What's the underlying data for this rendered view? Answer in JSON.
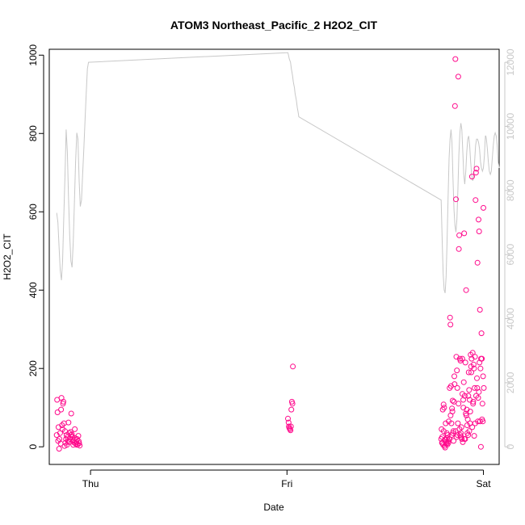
{
  "chart_data": {
    "type": "scatter",
    "title": "ATOM3 Northeast_Pacific_2 H2O2_CIT",
    "xlabel": "Date",
    "ylabel": "H2O2_CIT",
    "x_unit": "days from Thu 00:00",
    "x_ticks": [
      {
        "value": 0,
        "label": "Thu"
      },
      {
        "value": 1,
        "label": "Fri"
      },
      {
        "value": 2,
        "label": "Sat"
      }
    ],
    "xlim": [
      -0.21,
      2.08
    ],
    "ylim": [
      -45,
      1015
    ],
    "y_ticks": [
      0,
      200,
      400,
      600,
      800,
      1000
    ],
    "right_axis": {
      "label": "",
      "ylim": [
        -549,
        12406
      ],
      "ticks": [
        0,
        2000,
        4000,
        6000,
        8000,
        10000,
        12000
      ],
      "color": "#c8c8c8"
    },
    "series": [
      {
        "type": "points",
        "color": "#ff0a8c",
        "marker": "open-circle",
        "axis": "left",
        "x": [
          -0.172,
          -0.17,
          -0.168,
          -0.165,
          -0.163,
          -0.16,
          -0.158,
          -0.155,
          -0.152,
          -0.15,
          -0.148,
          -0.145,
          -0.142,
          -0.14,
          -0.138,
          -0.135,
          -0.132,
          -0.13,
          -0.128,
          -0.125,
          -0.122,
          -0.12,
          -0.118,
          -0.115,
          -0.112,
          -0.11,
          -0.108,
          -0.105,
          -0.102,
          -0.1,
          -0.098,
          -0.095,
          -0.092,
          -0.09,
          -0.088,
          -0.085,
          -0.082,
          -0.08,
          -0.078,
          -0.075,
          -0.072,
          -0.07,
          -0.068,
          -0.065,
          -0.062,
          -0.06,
          -0.058,
          -0.055,
          1.005,
          1.008,
          1.01,
          1.012,
          1.015,
          1.018,
          1.02,
          1.022,
          1.025,
          1.028,
          1.03,
          1.787,
          1.79,
          1.792,
          1.795,
          1.797,
          1.8,
          1.802,
          1.805,
          1.807,
          1.81,
          1.812,
          1.815,
          1.817,
          1.82,
          1.822,
          1.825,
          1.827,
          1.83,
          1.832,
          1.835,
          1.837,
          1.84,
          1.842,
          1.845,
          1.847,
          1.85,
          1.852,
          1.855,
          1.857,
          1.86,
          1.862,
          1.865,
          1.867,
          1.87,
          1.872,
          1.875,
          1.877,
          1.88,
          1.882,
          1.885,
          1.887,
          1.89,
          1.892,
          1.895,
          1.897,
          1.9,
          1.902,
          1.905,
          1.907,
          1.91,
          1.912,
          1.915,
          1.917,
          1.92,
          1.922,
          1.925,
          1.927,
          1.93,
          1.932,
          1.935,
          1.937,
          1.94,
          1.942,
          1.945,
          1.947,
          1.95,
          1.952,
          1.955,
          1.957,
          1.96,
          1.962,
          1.965,
          1.967,
          1.97,
          1.972,
          1.975,
          1.977,
          1.98,
          1.982,
          1.985,
          1.987,
          1.99,
          1.992,
          1.995,
          1.997,
          2.0,
          2.002,
          1.785,
          1.789,
          1.793,
          1.798,
          1.803,
          1.808,
          1.813,
          1.818,
          1.823,
          1.828,
          1.833,
          1.838,
          1.843,
          1.848,
          1.853,
          1.858,
          1.863,
          1.868,
          1.873,
          1.878,
          1.883,
          1.888,
          1.893,
          1.898,
          1.903,
          1.908,
          1.913,
          1.918,
          1.923,
          1.928,
          1.933,
          1.938,
          1.943,
          1.948,
          1.953,
          1.958,
          1.963,
          1.968,
          1.973,
          1.978,
          1.983,
          1.988,
          1.993,
          1.998
        ],
        "y": [
          30,
          120,
          88,
          15,
          50,
          -5,
          20,
          35,
          8,
          95,
          125,
          55,
          45,
          110,
          115,
          60,
          2,
          40,
          10,
          20,
          30,
          5,
          25,
          15,
          62,
          12,
          35,
          20,
          38,
          30,
          85,
          32,
          25,
          15,
          5,
          18,
          10,
          45,
          22,
          8,
          12,
          5,
          20,
          6,
          28,
          14,
          9,
          3,
          72,
          62,
          52,
          48,
          45,
          42,
          52,
          95,
          115,
          110,
          205,
          45,
          25,
          10,
          5,
          108,
          100,
          2,
          -2,
          18,
          12,
          8,
          22,
          6,
          15,
          10,
          20,
          20,
          330,
          312,
          155,
          60,
          98,
          90,
          35,
          40,
          115,
          180,
          870,
          990,
          632,
          230,
          195,
          150,
          60,
          945,
          505,
          540,
          225,
          30,
          35,
          25,
          20,
          225,
          12,
          120,
          165,
          545,
          130,
          20,
          85,
          400,
          95,
          55,
          70,
          30,
          190,
          145,
          120,
          60,
          235,
          205,
          225,
          690,
          240,
          110,
          210,
          200,
          150,
          230,
          630,
          700,
          710,
          175,
          470,
          65,
          580,
          140,
          215,
          350,
          200,
          0,
          290,
          225,
          110,
          65,
          610,
          150,
          20,
          10,
          95,
          40,
          18,
          60,
          35,
          30,
          65,
          150,
          80,
          30,
          118,
          15,
          160,
          40,
          25,
          30,
          110,
          45,
          220,
          50,
          135,
          100,
          20,
          215,
          80,
          35,
          130,
          40,
          90,
          190,
          50,
          115,
          28,
          60,
          130,
          150,
          125,
          550,
          65,
          225,
          70,
          180
        ]
      },
      {
        "type": "line",
        "color": "#c8c8c8",
        "axis": "right",
        "x": [
          -0.172,
          -0.166,
          -0.16,
          -0.154,
          -0.148,
          -0.142,
          -0.136,
          -0.13,
          -0.124,
          -0.118,
          -0.112,
          -0.106,
          -0.1,
          -0.094,
          -0.088,
          -0.082,
          -0.076,
          -0.07,
          -0.064,
          -0.058,
          -0.052,
          -0.046,
          -0.04,
          -0.034,
          -0.028,
          -0.022,
          -0.016,
          -0.01,
          1.0,
          1.002,
          1.005,
          1.012,
          1.018,
          1.022,
          1.025,
          1.028,
          1.03,
          1.032,
          1.035,
          1.038,
          1.04,
          1.042,
          1.045,
          1.048,
          1.05,
          1.052,
          1.055,
          1.058,
          1.06,
          1.785,
          1.79,
          1.795,
          1.8,
          1.805,
          1.81,
          1.815,
          1.82,
          1.825,
          1.83,
          1.835,
          1.84,
          1.845,
          1.85,
          1.855,
          1.86,
          1.865,
          1.87,
          1.875,
          1.88,
          1.885,
          1.89,
          1.895,
          1.9,
          1.905,
          1.91,
          1.915,
          1.92,
          1.925,
          1.93,
          1.935,
          1.94,
          1.945,
          1.95,
          1.955,
          1.96,
          1.965,
          1.97,
          1.975,
          1.98,
          1.985,
          1.99,
          1.995,
          2.0,
          2.005,
          2.008,
          2.01,
          2.012,
          2.015,
          2.02,
          2.025,
          2.03,
          2.035,
          2.04,
          2.045,
          2.05,
          2.055,
          2.06,
          2.065,
          2.07,
          2.075,
          2.08
        ],
        "y": [
          7300,
          7000,
          6200,
          5500,
          5200,
          5800,
          7200,
          8500,
          9900,
          9200,
          7800,
          6600,
          5800,
          5600,
          6400,
          7600,
          8900,
          9800,
          9600,
          8300,
          7500,
          7700,
          8500,
          9300,
          10200,
          11000,
          11800,
          12000,
          12300,
          12300,
          12300,
          12100,
          12000,
          11800,
          11700,
          11600,
          11500,
          11400,
          11300,
          11200,
          11100,
          11000,
          10900,
          10800,
          10700,
          10600,
          10500,
          10400,
          10300,
          7700,
          6400,
          5400,
          4900,
          4800,
          5300,
          6400,
          7800,
          9000,
          9600,
          9900,
          9500,
          8400,
          7400,
          6900,
          6700,
          7100,
          8000,
          9100,
          9800,
          10100,
          9900,
          9200,
          8500,
          8200,
          8600,
          9200,
          9600,
          9700,
          9400,
          8900,
          8500,
          8300,
          8400,
          8900,
          9400,
          9600,
          9600,
          9500,
          9300,
          8900,
          8700,
          8600,
          8700,
          9100,
          9500,
          9700,
          9700,
          9600,
          9300,
          8900,
          8600,
          8500,
          8600,
          9000,
          9400,
          9700,
          9800,
          9700,
          9400,
          8900,
          8700
        ]
      }
    ]
  }
}
